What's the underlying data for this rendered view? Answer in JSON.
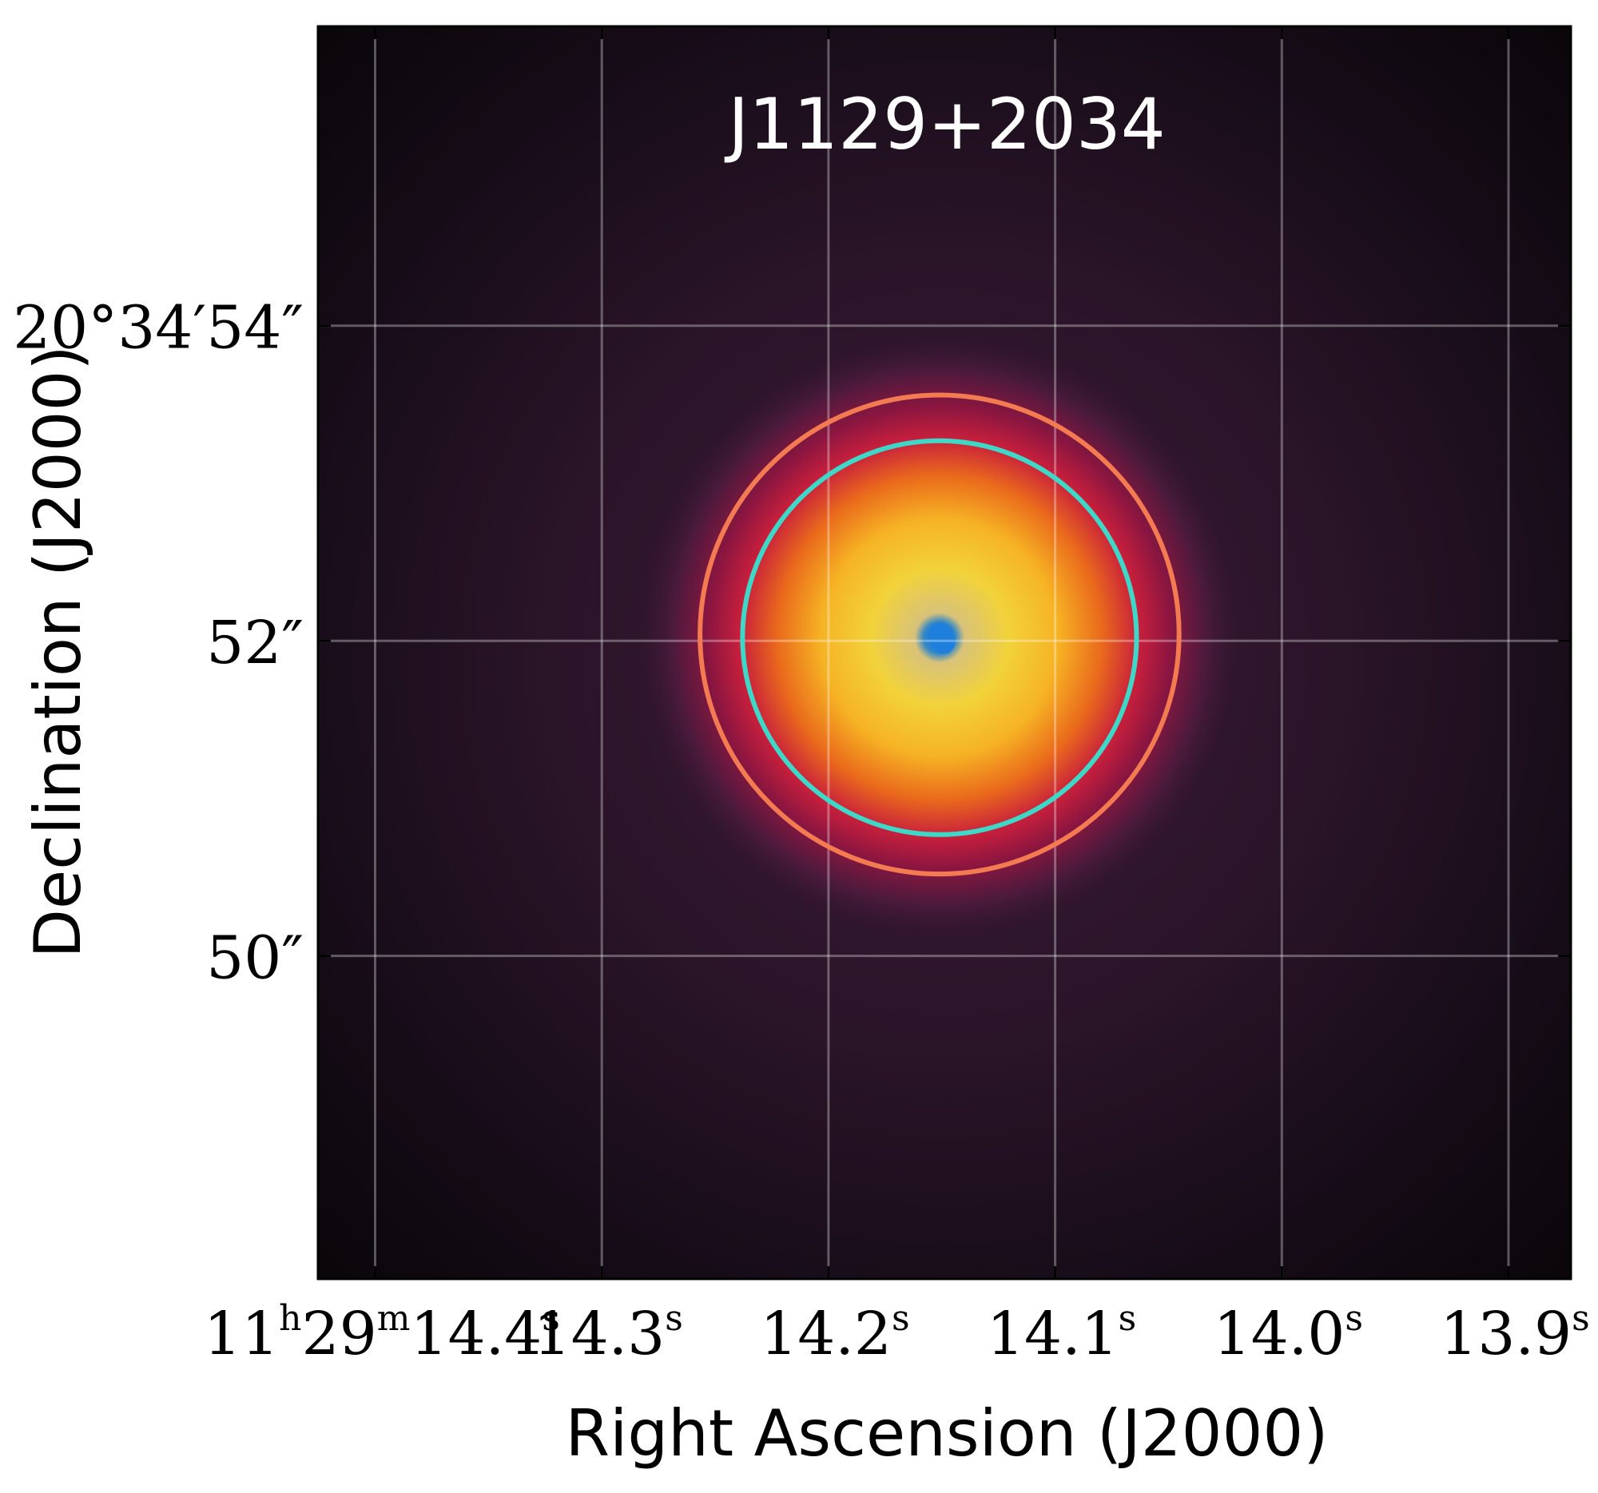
{
  "chart_data": {
    "type": "image",
    "title": "J1129+2034",
    "xlabel": "Right Ascension (J2000)",
    "ylabel": "Declination (J2000)",
    "colormap": "inferno-like with blue core",
    "grid": true,
    "x_ticks": [
      {
        "value": 14.4,
        "label": "11h29m14.4s",
        "main": "11",
        "sup1": "h",
        "mid": "29",
        "sup2": "m",
        "rest": "14.4",
        "sup3": "s"
      },
      {
        "value": 14.3,
        "label": "14.3s",
        "main": "14.3",
        "sup": "s"
      },
      {
        "value": 14.2,
        "label": "14.2s",
        "main": "14.2",
        "sup": "s"
      },
      {
        "value": 14.1,
        "label": "14.1s",
        "main": "14.1",
        "sup": "s"
      },
      {
        "value": 14.0,
        "label": "14.0s",
        "main": "14.0",
        "sup": "s"
      },
      {
        "value": 13.9,
        "label": "13.9s",
        "main": "13.9",
        "sup": "s"
      }
    ],
    "x_range": [
      14.4252,
      13.8725
    ],
    "y_ticks": [
      {
        "value": 54,
        "label": "20°34′54″"
      },
      {
        "value": 52,
        "label": "52″"
      },
      {
        "value": 50,
        "label": "50″"
      }
    ],
    "y_range": [
      47.95,
      55.9
    ],
    "apertures": [
      {
        "name": "outer",
        "color": "#f47a52",
        "center_ra": 14.151,
        "center_dec": 52.04,
        "radius_arcsec": 1.52
      },
      {
        "name": "inner",
        "color": "#3ed8c9",
        "center_ra": 14.151,
        "center_dec": 52.02,
        "radius_arcsec": 1.25
      }
    ],
    "source": {
      "center_ra": 14.151,
      "center_dec": 52.02
    }
  },
  "colors": {
    "background": "#1c0f1c",
    "grid": "#ffffff",
    "outer_circle": "#f47a52",
    "inner_circle": "#3ed8c9",
    "core": "#1f7fdc"
  }
}
